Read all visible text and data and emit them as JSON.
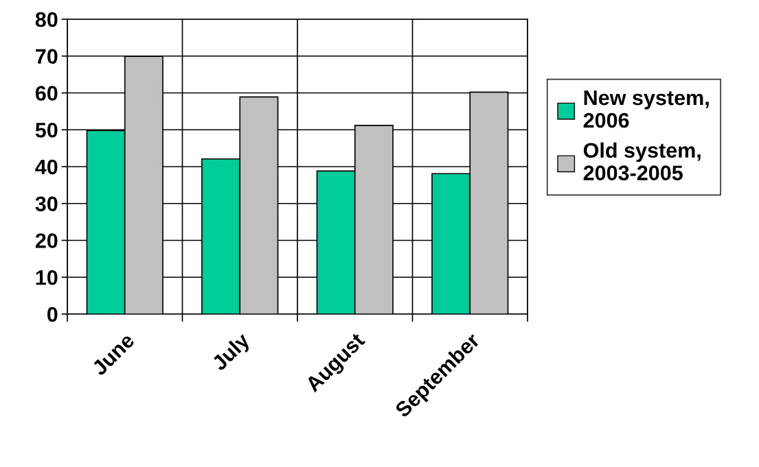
{
  "chart_data": {
    "type": "bar",
    "categories": [
      "June",
      "July",
      "August",
      "September"
    ],
    "series": [
      {
        "name": "New system, 2006",
        "color": "#00cc99",
        "values": [
          49.8,
          42.1,
          38.8,
          38.1
        ]
      },
      {
        "name": "Old system, 2003-2005",
        "color": "#c0c0c0",
        "values": [
          69.9,
          58.9,
          51.2,
          60.2
        ]
      }
    ],
    "ylim": [
      0,
      80
    ],
    "yticks": [
      0,
      10,
      20,
      30,
      40,
      50,
      60,
      70,
      80
    ],
    "grid": true,
    "legend": "right"
  }
}
